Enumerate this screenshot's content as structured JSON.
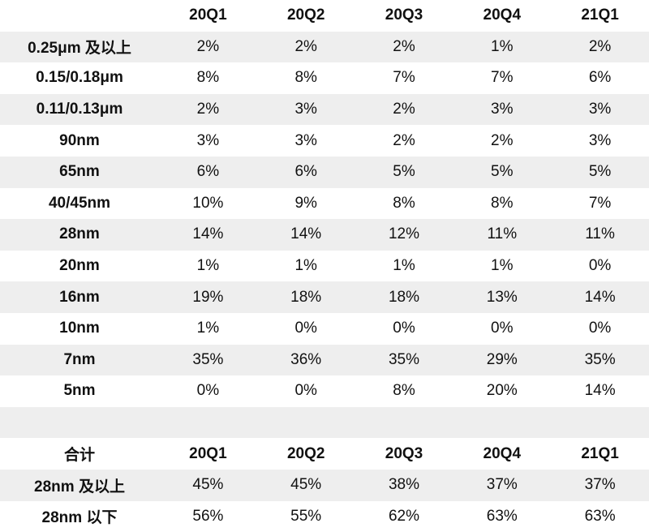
{
  "table1": {
    "header": [
      "",
      "20Q1",
      "20Q2",
      "20Q3",
      "20Q4",
      "21Q1"
    ],
    "rows": [
      {
        "label": "0.25μm 及以上",
        "values": [
          "2%",
          "2%",
          "2%",
          "1%",
          "2%"
        ]
      },
      {
        "label": "0.15/0.18μm",
        "values": [
          "8%",
          "8%",
          "7%",
          "7%",
          "6%"
        ]
      },
      {
        "label": "0.11/0.13μm",
        "values": [
          "2%",
          "3%",
          "2%",
          "3%",
          "3%"
        ]
      },
      {
        "label": "90nm",
        "values": [
          "3%",
          "3%",
          "2%",
          "2%",
          "3%"
        ]
      },
      {
        "label": "65nm",
        "values": [
          "6%",
          "6%",
          "5%",
          "5%",
          "5%"
        ]
      },
      {
        "label": "40/45nm",
        "values": [
          "10%",
          "9%",
          "8%",
          "8%",
          "7%"
        ]
      },
      {
        "label": "28nm",
        "values": [
          "14%",
          "14%",
          "12%",
          "11%",
          "11%"
        ]
      },
      {
        "label": "20nm",
        "values": [
          "1%",
          "1%",
          "1%",
          "1%",
          "0%"
        ]
      },
      {
        "label": "16nm",
        "values": [
          "19%",
          "18%",
          "18%",
          "13%",
          "14%"
        ]
      },
      {
        "label": "10nm",
        "values": [
          "1%",
          "0%",
          "0%",
          "0%",
          "0%"
        ]
      },
      {
        "label": "7nm",
        "values": [
          "35%",
          "36%",
          "35%",
          "29%",
          "35%"
        ]
      },
      {
        "label": "5nm",
        "values": [
          "0%",
          "0%",
          "8%",
          "20%",
          "14%"
        ]
      }
    ]
  },
  "table2": {
    "header": [
      "合计",
      "20Q1",
      "20Q2",
      "20Q3",
      "20Q4",
      "21Q1"
    ],
    "rows": [
      {
        "label": "28nm 及以上",
        "values": [
          "45%",
          "45%",
          "38%",
          "37%",
          "37%"
        ]
      },
      {
        "label": "28nm 以下",
        "values": [
          "56%",
          "55%",
          "62%",
          "63%",
          "63%"
        ]
      }
    ]
  }
}
